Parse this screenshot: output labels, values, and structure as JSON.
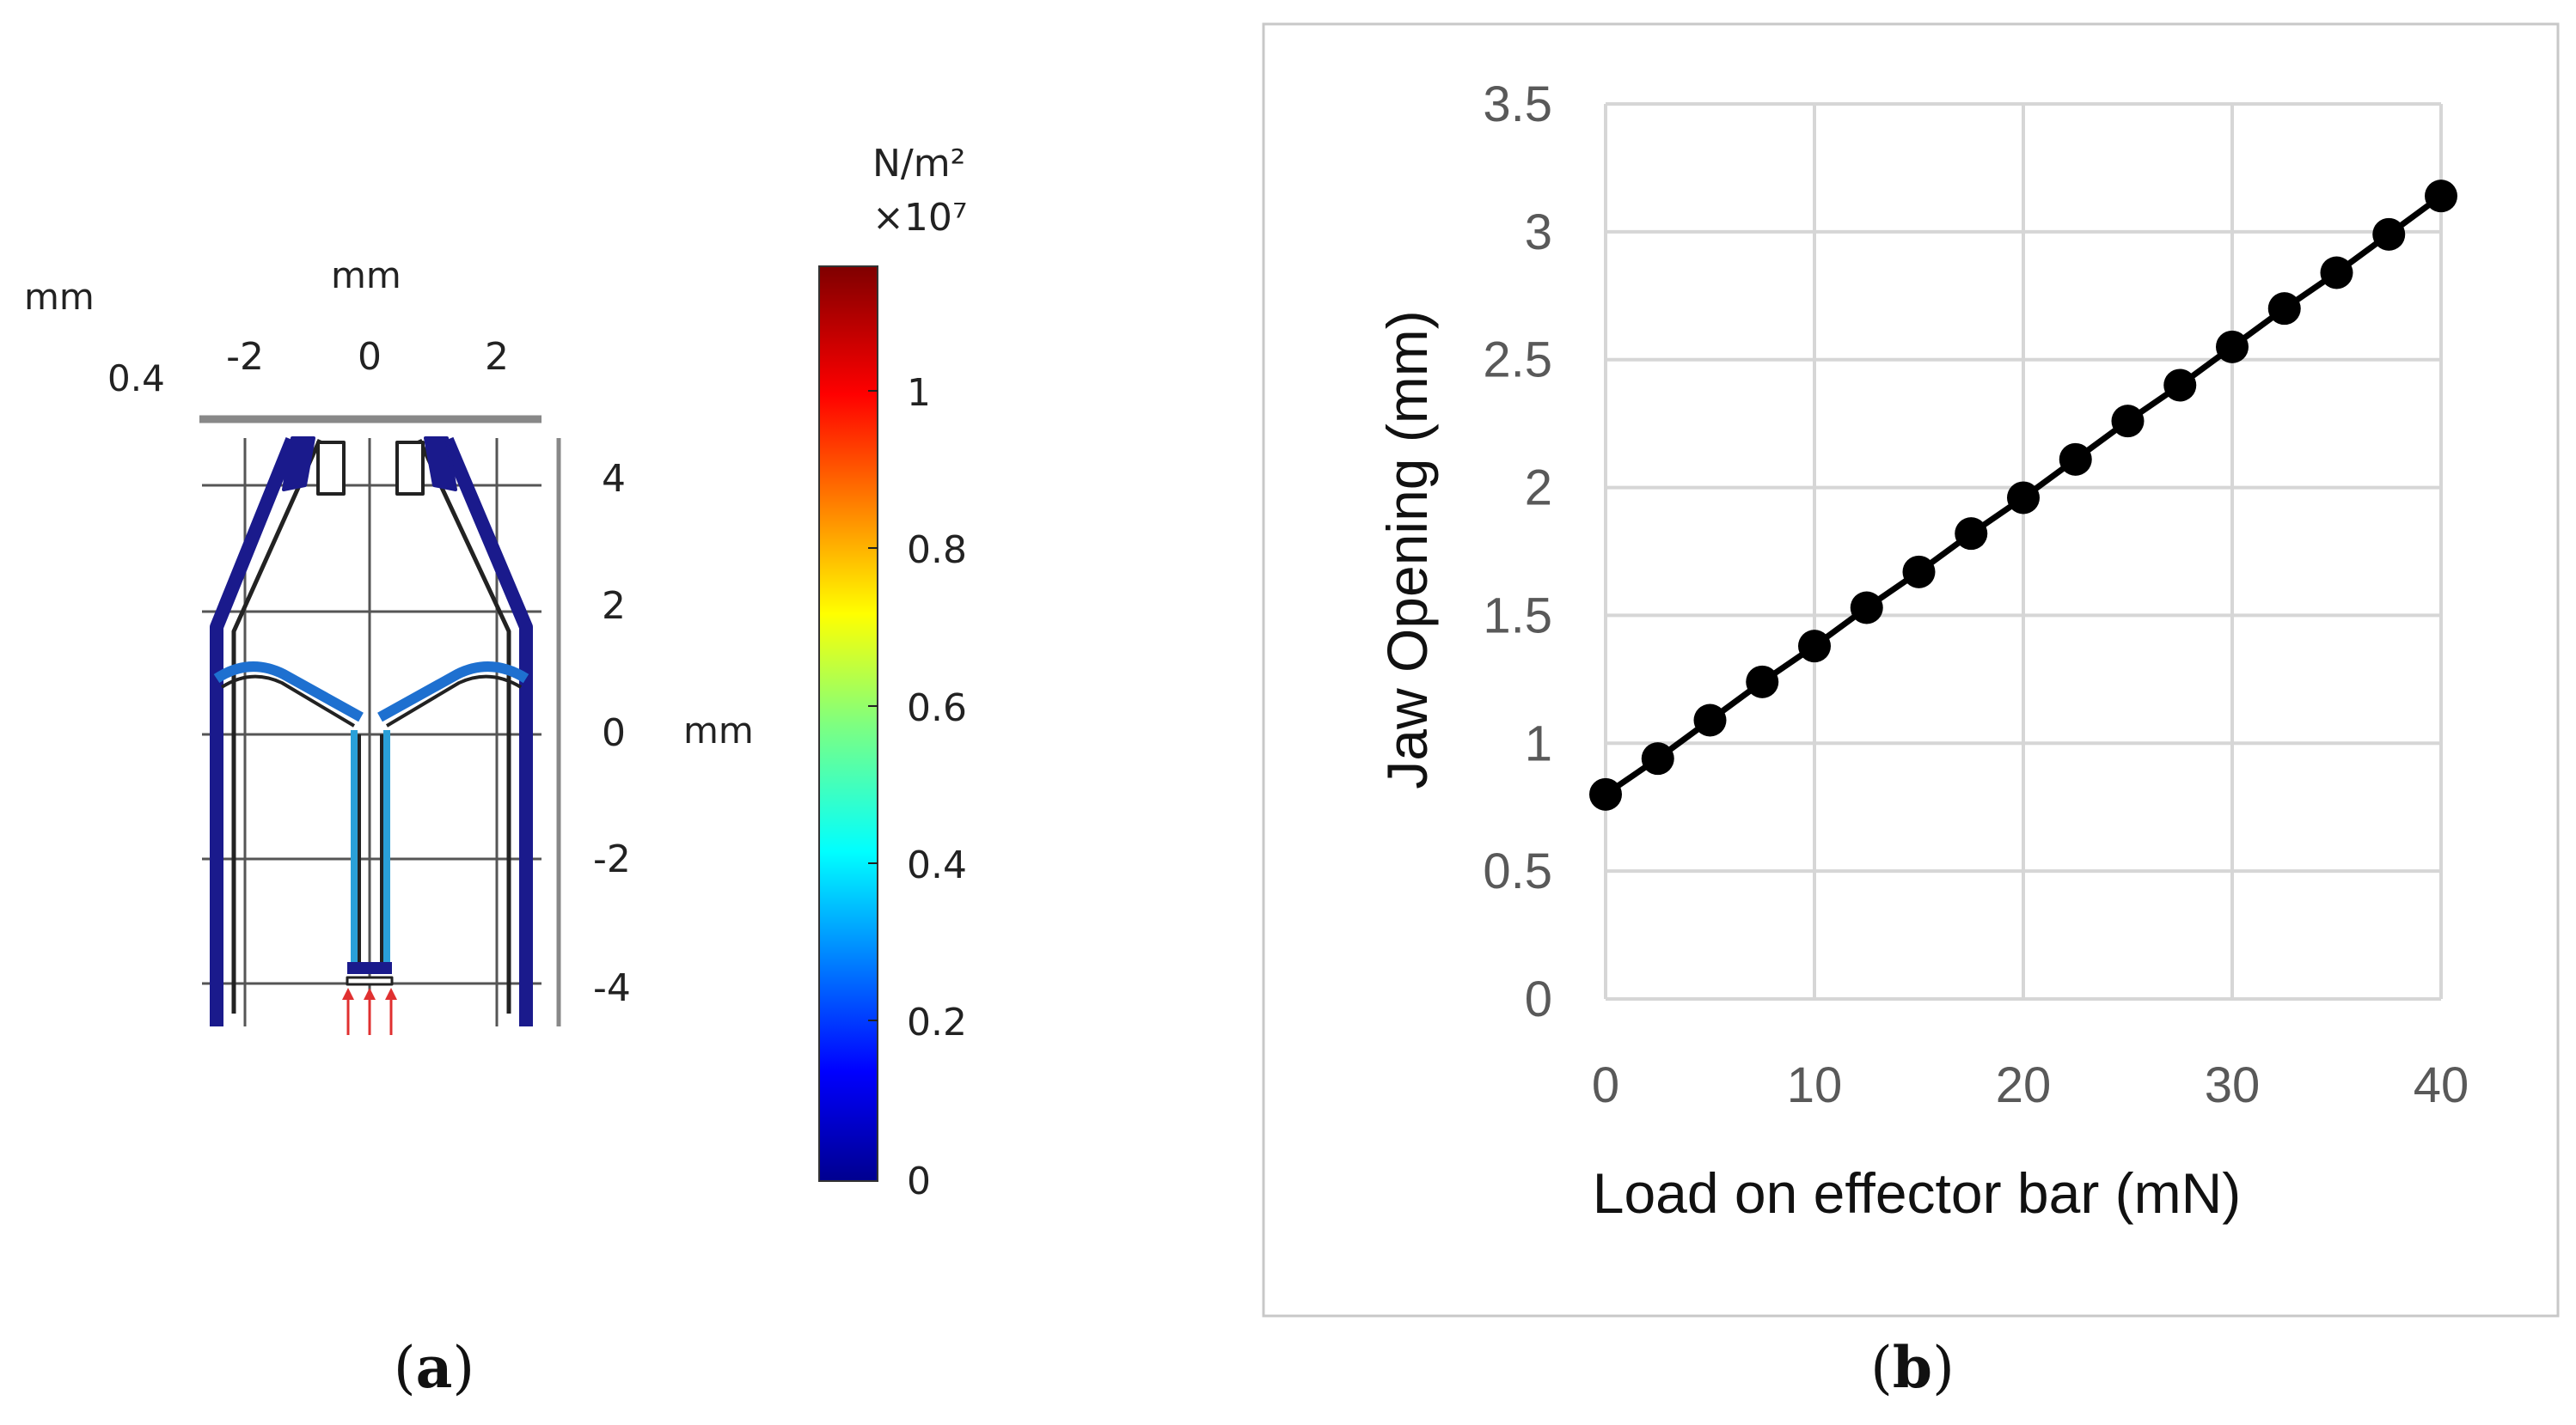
{
  "panel_a": {
    "caption": "(a)",
    "caption_parts": [
      "(",
      "a",
      ")"
    ],
    "corner_unit": "mm",
    "corner_value": "0.4",
    "top_axis_unit": "mm",
    "top_ticks": [
      "-2",
      "0",
      "2"
    ],
    "right_axis_unit": "mm",
    "right_ticks": [
      "4",
      "2",
      "0",
      "-2",
      "-4"
    ],
    "colorbar_unit": "N/m²",
    "colorbar_scale": "×10⁷",
    "colorbar_ticks": [
      "1",
      "0.8",
      "0.6",
      "0.4",
      "0.2",
      "0"
    ],
    "colors": {
      "stress_low": "#1a1a8c",
      "stress_mid": "#1e90ff",
      "frame": "#222222",
      "arrow": "#e03030"
    }
  },
  "panel_b": {
    "caption": "(b)",
    "caption_parts": [
      "(",
      "b",
      ")"
    ]
  },
  "chart_data": {
    "type": "line",
    "title": "",
    "xlabel": "Load on effector bar (mN)",
    "ylabel": "Jaw Opening (mm)",
    "xlim": [
      0,
      40
    ],
    "ylim": [
      0,
      3.5
    ],
    "x_ticks": [
      "0",
      "10",
      "20",
      "30",
      "40"
    ],
    "y_ticks": [
      "0",
      "0.5",
      "1",
      "1.5",
      "2",
      "2.5",
      "3",
      "3.5"
    ],
    "grid": true,
    "series": [
      {
        "name": "Jaw Opening",
        "color": "#000000",
        "x": [
          0,
          2.5,
          5,
          7.5,
          10,
          12.5,
          15,
          17.5,
          20,
          22.5,
          25,
          27.5,
          30,
          32.5,
          35,
          37.5,
          40
        ],
        "y": [
          0.8,
          0.94,
          1.09,
          1.24,
          1.38,
          1.53,
          1.67,
          1.82,
          1.96,
          2.11,
          2.26,
          2.4,
          2.55,
          2.7,
          2.84,
          2.99,
          3.14
        ]
      }
    ]
  }
}
